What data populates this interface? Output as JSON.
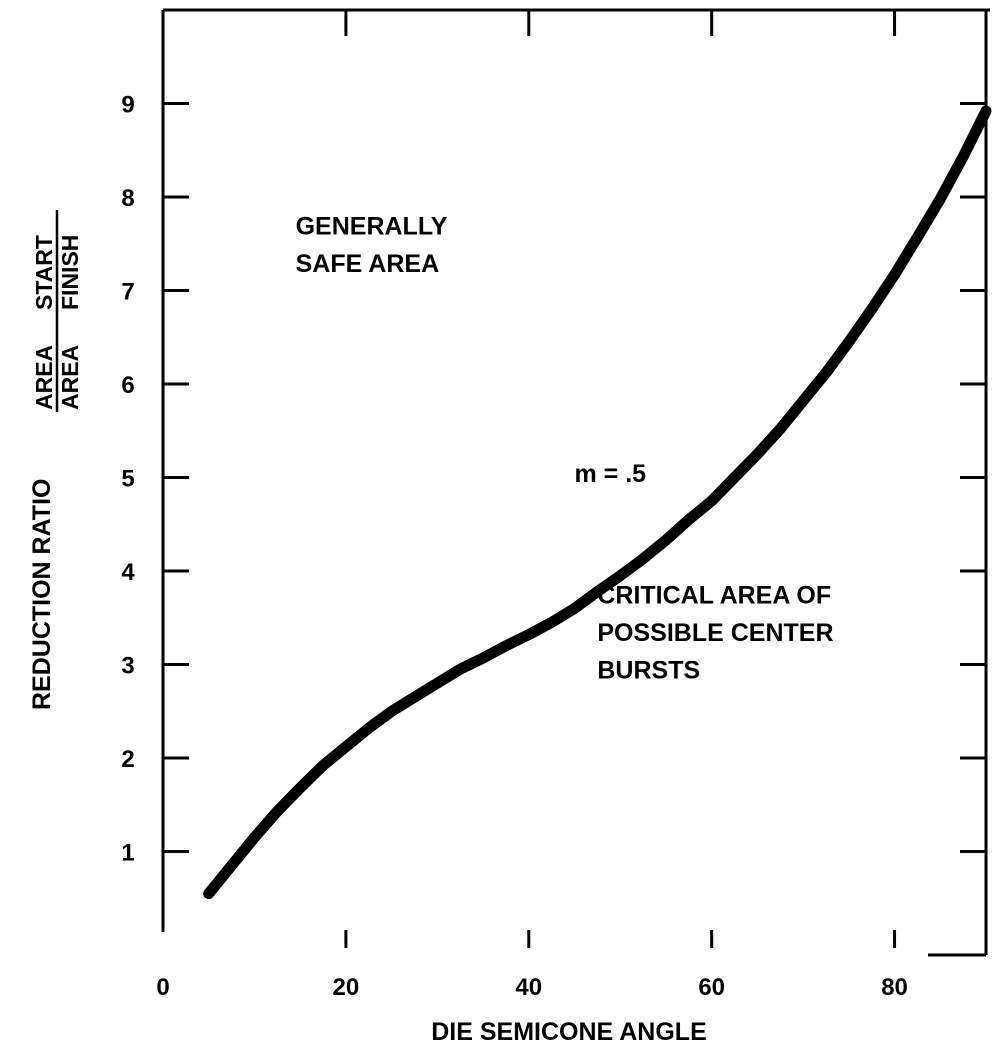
{
  "chart_data": {
    "type": "line",
    "title": "",
    "xlabel": "DIE SEMICONE ANGLE",
    "ylabel": "REDUCTION RATIO",
    "ylabel_fraction": {
      "numerator": [
        "AREA",
        "START"
      ],
      "denominator": [
        "AREA",
        "FINISH"
      ]
    },
    "xlim": [
      0,
      90
    ],
    "ylim": [
      0,
      10
    ],
    "x_ticks": [
      0,
      20,
      40,
      60,
      80
    ],
    "y_ticks": [
      1,
      2,
      3,
      4,
      5,
      6,
      7,
      8,
      9
    ],
    "grid": false,
    "series": [
      {
        "name": "m = .5",
        "x": [
          5,
          7.5,
          10,
          12.5,
          15,
          17.5,
          20,
          22.5,
          25,
          27.5,
          30,
          32.5,
          35,
          37.5,
          40,
          42.5,
          45,
          47.5,
          50,
          52.5,
          55,
          57.5,
          60,
          62.5,
          65,
          67.5,
          70,
          72.5,
          75,
          77.5,
          80,
          82.5,
          85,
          87.5,
          90
        ],
        "y": [
          0.55,
          0.85,
          1.15,
          1.43,
          1.68,
          1.92,
          2.12,
          2.32,
          2.5,
          2.65,
          2.8,
          2.95,
          3.07,
          3.2,
          3.32,
          3.45,
          3.6,
          3.78,
          3.95,
          4.13,
          4.33,
          4.55,
          4.75,
          5.0,
          5.25,
          5.52,
          5.82,
          6.12,
          6.45,
          6.8,
          7.17,
          7.57,
          7.98,
          8.43,
          8.92
        ]
      }
    ],
    "annotations": [
      {
        "text": "GENERALLY",
        "x": 14.5,
        "y": 7.6
      },
      {
        "text": "SAFE AREA",
        "x": 14.5,
        "y": 7.2
      },
      {
        "text": "m = .5",
        "x": 45,
        "y": 4.95
      },
      {
        "text": "CRITICAL AREA OF",
        "x": 47.5,
        "y": 3.65
      },
      {
        "text": "POSSIBLE CENTER",
        "x": 47.5,
        "y": 3.25
      },
      {
        "text": "BURSTS",
        "x": 47.5,
        "y": 2.85
      }
    ]
  }
}
